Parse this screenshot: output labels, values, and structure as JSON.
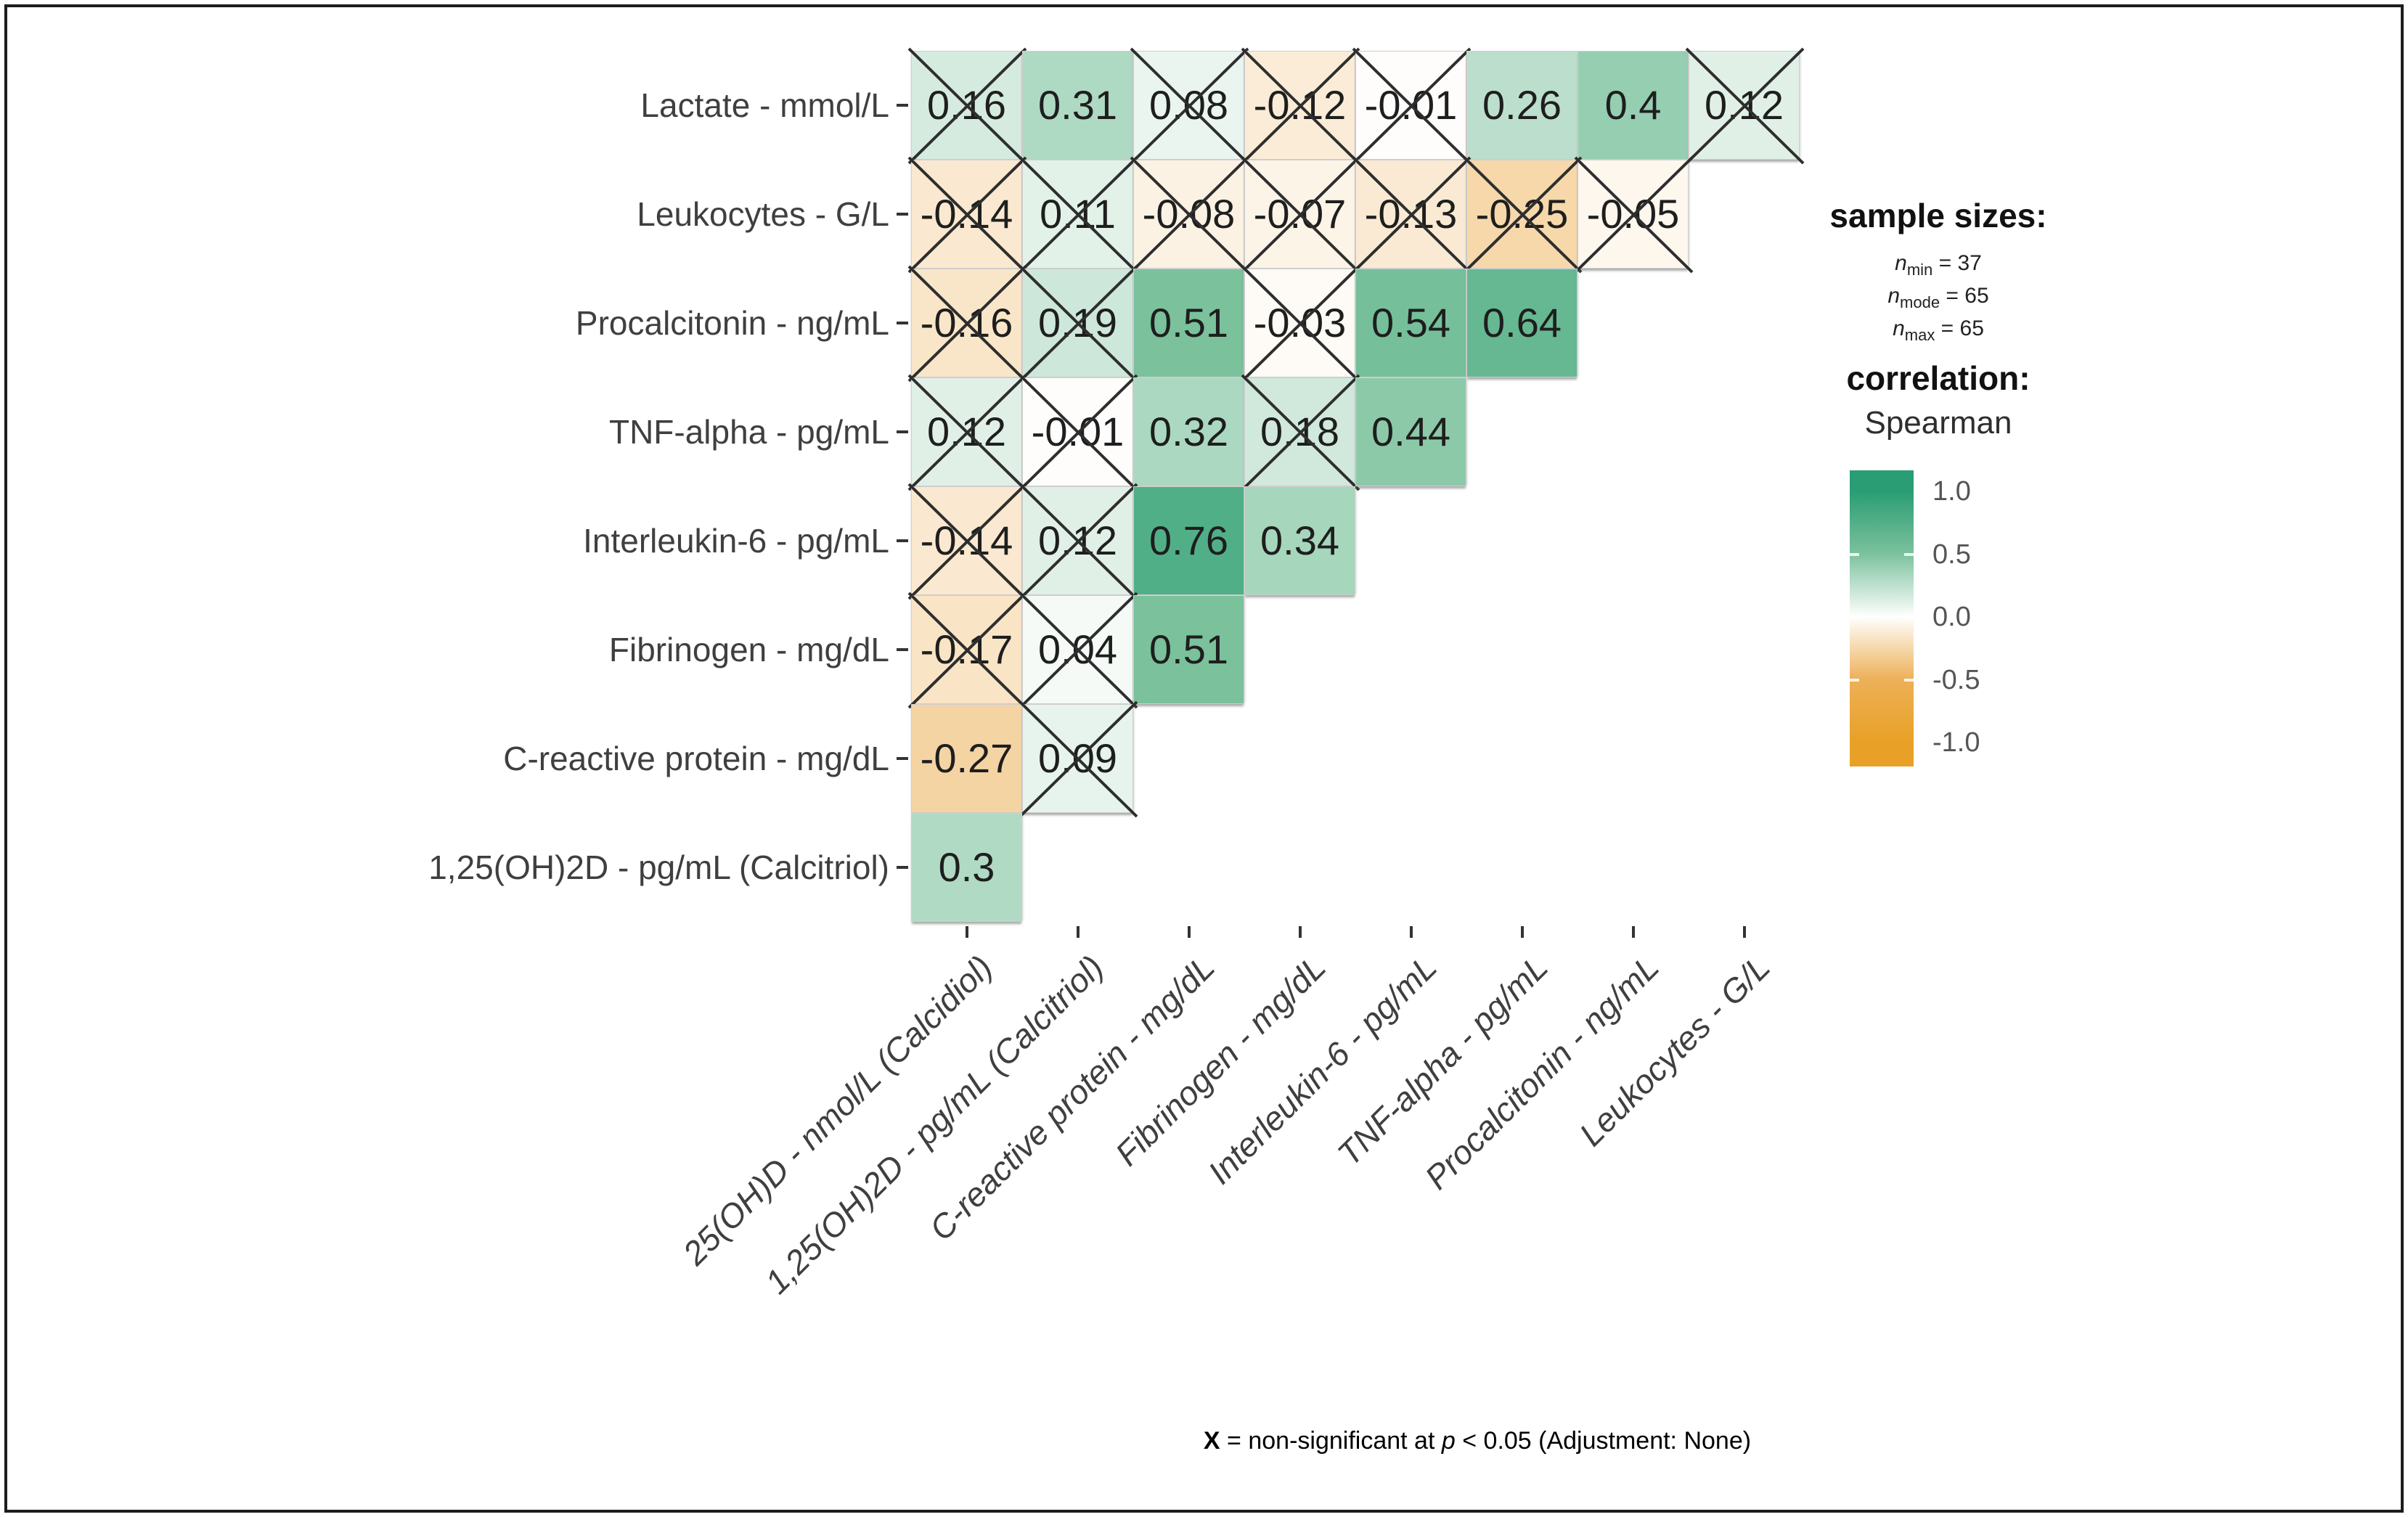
{
  "chart_data": {
    "type": "heatmap",
    "subtype": "lower-triangle-correlation-matrix",
    "correlation_method": "Spearman",
    "x_categories": [
      "25(OH)D - nmol/L (Calcidiol)",
      "1,25(OH)2D - pg/mL (Calcitriol)",
      "C-reactive protein - mg/dL",
      "Fibrinogen - mg/dL",
      "Interleukin-6 - pg/mL",
      "TNF-alpha - pg/mL",
      "Procalcitonin - ng/mL",
      "Leukocytes - G/L"
    ],
    "y_categories": [
      "Lactate - mmol/L",
      "Leukocytes - G/L",
      "Procalcitonin - ng/mL",
      "TNF-alpha - pg/mL",
      "Interleukin-6 - pg/mL",
      "Fibrinogen - mg/dL",
      "C-reactive protein - mg/dL",
      "1,25(OH)2D - pg/mL (Calcitriol)"
    ],
    "matrix": [
      {
        "row_label": "Lactate - mmol/L",
        "cells": [
          {
            "label": "0.16",
            "value": 0.16,
            "non_significant": true
          },
          {
            "label": "0.31",
            "value": 0.31,
            "non_significant": false
          },
          {
            "label": "0.08",
            "value": 0.08,
            "non_significant": true
          },
          {
            "label": "-0.12",
            "value": -0.12,
            "non_significant": true
          },
          {
            "label": "-0.01",
            "value": -0.01,
            "non_significant": true
          },
          {
            "label": "0.26",
            "value": 0.26,
            "non_significant": false
          },
          {
            "label": "0.4",
            "value": 0.4,
            "non_significant": false
          },
          {
            "label": "0.12",
            "value": 0.12,
            "non_significant": true
          }
        ]
      },
      {
        "row_label": "Leukocytes - G/L",
        "cells": [
          {
            "label": "-0.14",
            "value": -0.14,
            "non_significant": true
          },
          {
            "label": "0.11",
            "value": 0.11,
            "non_significant": true
          },
          {
            "label": "-0.08",
            "value": -0.08,
            "non_significant": true
          },
          {
            "label": "-0.07",
            "value": -0.07,
            "non_significant": true
          },
          {
            "label": "-0.13",
            "value": -0.13,
            "non_significant": true
          },
          {
            "label": "-0.25",
            "value": -0.25,
            "non_significant": true
          },
          {
            "label": "-0.05",
            "value": -0.05,
            "non_significant": true
          }
        ]
      },
      {
        "row_label": "Procalcitonin - ng/mL",
        "cells": [
          {
            "label": "-0.16",
            "value": -0.16,
            "non_significant": true
          },
          {
            "label": "0.19",
            "value": 0.19,
            "non_significant": true
          },
          {
            "label": "0.51",
            "value": 0.51,
            "non_significant": false
          },
          {
            "label": "-0.03",
            "value": -0.03,
            "non_significant": true
          },
          {
            "label": "0.54",
            "value": 0.54,
            "non_significant": false
          },
          {
            "label": "0.64",
            "value": 0.64,
            "non_significant": false
          }
        ]
      },
      {
        "row_label": "TNF-alpha - pg/mL",
        "cells": [
          {
            "label": "0.12",
            "value": 0.12,
            "non_significant": true
          },
          {
            "label": "-0.01",
            "value": -0.01,
            "non_significant": true
          },
          {
            "label": "0.32",
            "value": 0.32,
            "non_significant": false
          },
          {
            "label": "0.18",
            "value": 0.18,
            "non_significant": true
          },
          {
            "label": "0.44",
            "value": 0.44,
            "non_significant": false
          }
        ]
      },
      {
        "row_label": "Interleukin-6 - pg/mL",
        "cells": [
          {
            "label": "-0.14",
            "value": -0.14,
            "non_significant": true
          },
          {
            "label": "0.12",
            "value": 0.12,
            "non_significant": true
          },
          {
            "label": "0.76",
            "value": 0.76,
            "non_significant": false
          },
          {
            "label": "0.34",
            "value": 0.34,
            "non_significant": false
          }
        ]
      },
      {
        "row_label": "Fibrinogen - mg/dL",
        "cells": [
          {
            "label": "-0.17",
            "value": -0.17,
            "non_significant": true
          },
          {
            "label": "0.04",
            "value": 0.04,
            "non_significant": true
          },
          {
            "label": "0.51",
            "value": 0.51,
            "non_significant": false
          }
        ]
      },
      {
        "row_label": "C-reactive protein - mg/dL",
        "cells": [
          {
            "label": "-0.27",
            "value": -0.27,
            "non_significant": false
          },
          {
            "label": "0.09",
            "value": 0.09,
            "non_significant": true
          }
        ]
      },
      {
        "row_label": "1,25(OH)2D - pg/mL (Calcitriol)",
        "cells": [
          {
            "label": "0.3",
            "value": 0.3,
            "non_significant": false
          }
        ]
      }
    ],
    "legend": {
      "sample_sizes": {
        "title": "sample sizes:",
        "lines": [
          {
            "symbol": "n",
            "subscript": "min",
            "value": "= 37"
          },
          {
            "symbol": "n",
            "subscript": "mode",
            "value": "= 65"
          },
          {
            "symbol": "n",
            "subscript": "max",
            "value": "= 65"
          }
        ]
      },
      "correlation_title": "correlation:",
      "method": "Spearman",
      "colorbar_ticks": [
        "1.0",
        "0.5",
        "0.0",
        "-0.5",
        "-1.0"
      ],
      "colorbar_range": [
        -1,
        1
      ]
    },
    "caption": {
      "x_symbol": "X",
      "mid": " = non-significant at ",
      "p": "p",
      "tail": " < 0.05 (Adjustment: None)",
      "full_text": "X = non-significant at p < 0.05 (Adjustment: None)"
    },
    "colors": {
      "scale_stops": [
        [
          -1,
          "#e8a126"
        ],
        [
          -0.5,
          "#edb057"
        ],
        [
          0,
          "#ffffff"
        ],
        [
          0.5,
          "#7cc29d"
        ],
        [
          1,
          "#2a9d74"
        ]
      ],
      "x_mark": "#2e2e2e",
      "cell_border": "#cfcfcf",
      "axis_text": "#3f3f3f",
      "tick_text": "#555555",
      "frame_border": "#1c1c1c"
    }
  }
}
